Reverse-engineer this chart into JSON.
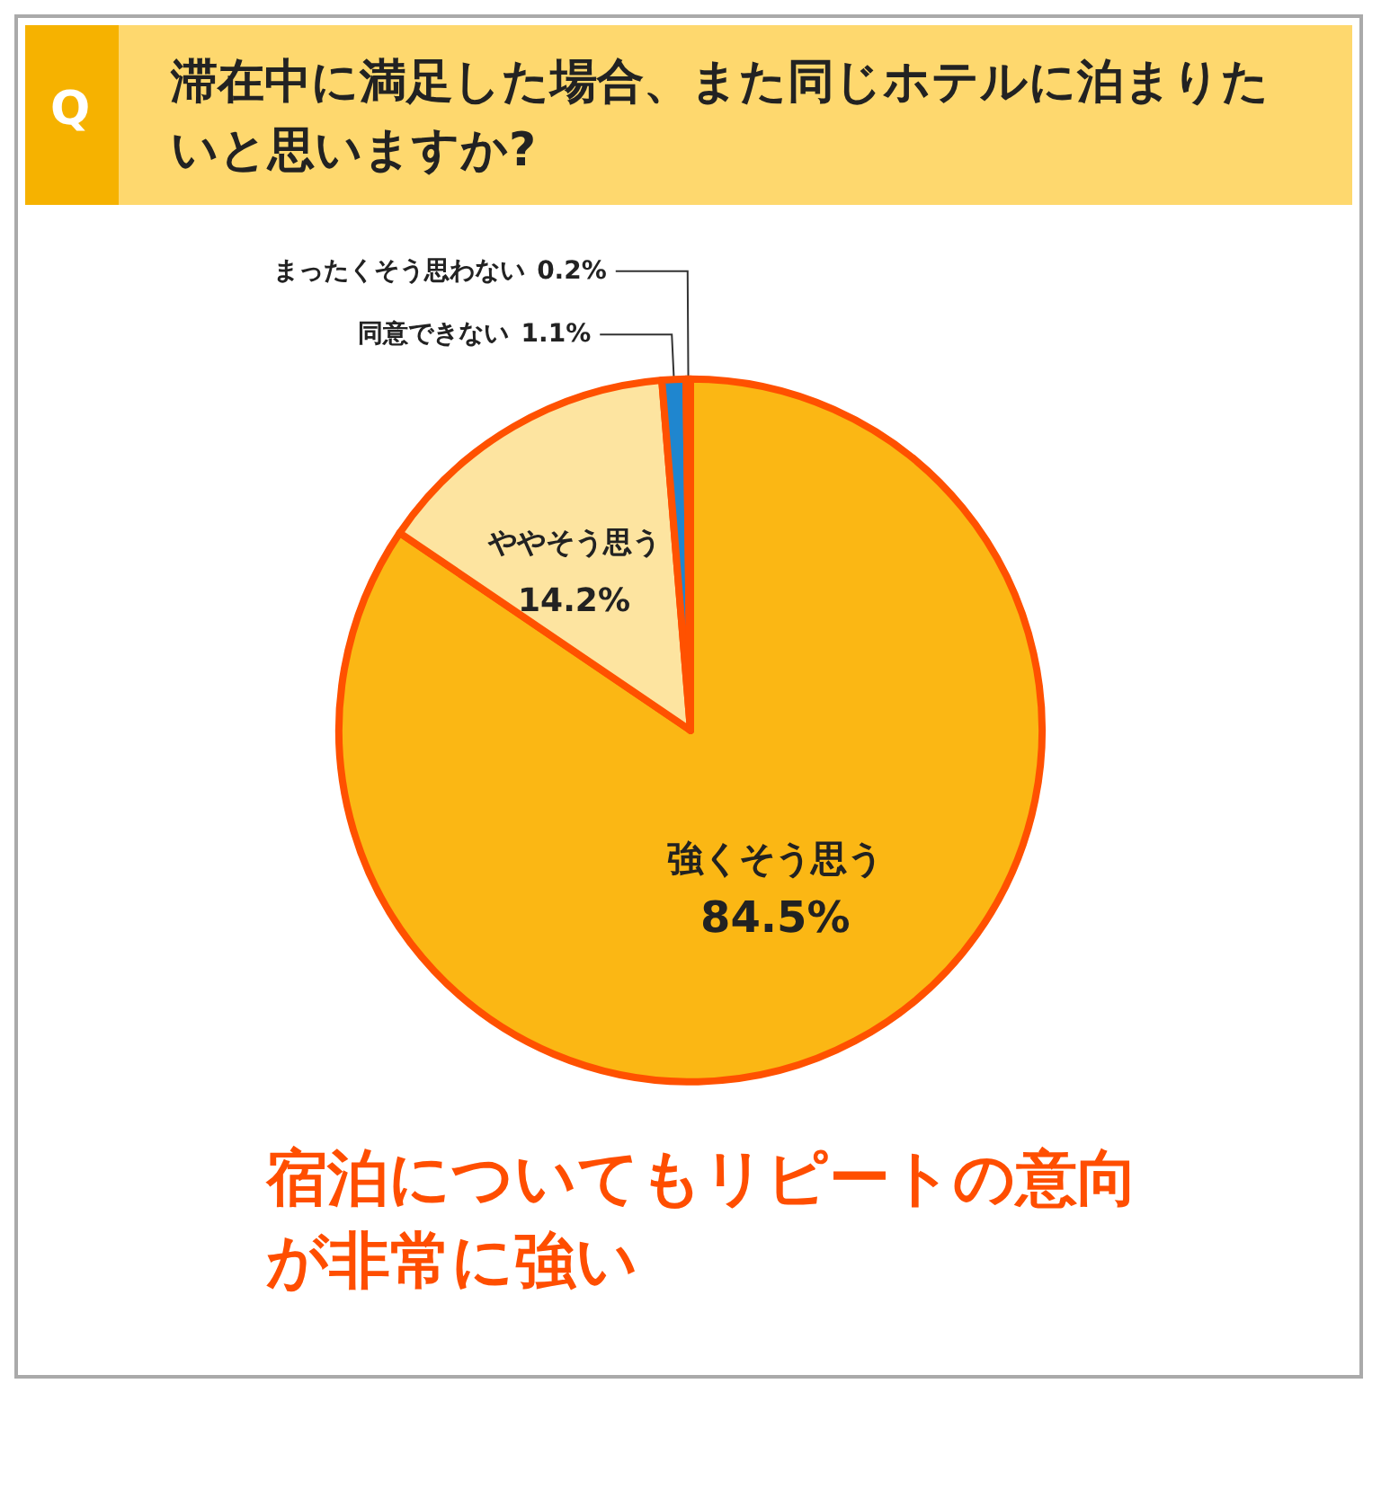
{
  "chart_data": {
    "type": "pie",
    "title": "滞在中に満足した場合、また同じホテルに泊まりたいと思いますか?",
    "categories": [
      "強くそう思う",
      "ややそう思う",
      "同意できない",
      "まったくそう思わない"
    ],
    "values": [
      84.5,
      14.2,
      1.1,
      0.2
    ],
    "colors": [
      "#fbb714",
      "#fde4a0",
      "#1f86cf",
      "#3a3a3a"
    ],
    "value_labels": [
      "84.5%",
      "14.2%",
      "1.1%",
      "0.2%"
    ],
    "annotations": [
      "Q",
      "宿泊についてもリピートの意向が非常に強い"
    ],
    "legend": false
  }
}
